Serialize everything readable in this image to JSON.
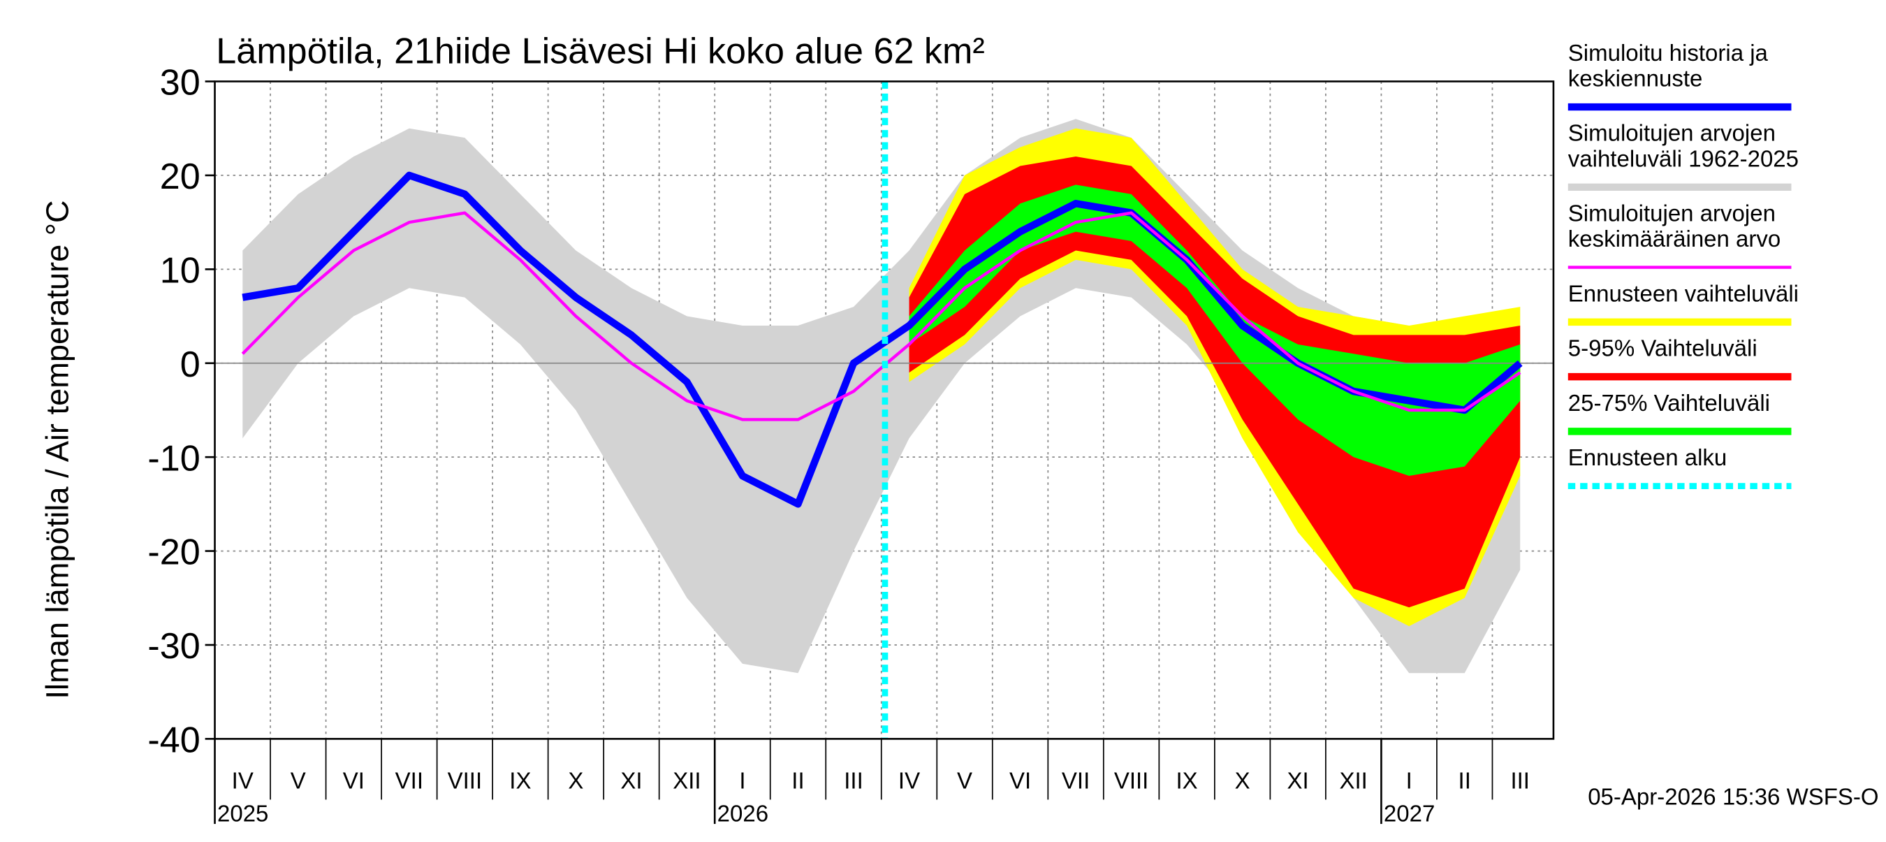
{
  "chart_data": {
    "type": "line",
    "title": "Lämpötila, 21hiide Lisävesi Hi koko alue 62 km²",
    "ylabel": "Ilman lämpötila / Air temperature    °C",
    "footer": "05-Apr-2026 15:36 WSFS-O",
    "x": [
      "2025-04",
      "2025-05",
      "2025-06",
      "2025-07",
      "2025-08",
      "2025-09",
      "2025-10",
      "2025-11",
      "2025-12",
      "2026-01",
      "2026-02",
      "2026-03",
      "2026-04",
      "2026-05",
      "2026-06",
      "2026-07",
      "2026-08",
      "2026-09",
      "2026-10",
      "2026-11",
      "2026-12",
      "2027-01",
      "2027-02",
      "2027-03"
    ],
    "x_tick_labels": [
      "IV",
      "V",
      "VI",
      "VII",
      "VIII",
      "IX",
      "X",
      "XI",
      "XII",
      "I",
      "II",
      "III",
      "IV",
      "V",
      "VI",
      "VII",
      "VIII",
      "IX",
      "X",
      "XI",
      "XII",
      "I",
      "II",
      "III"
    ],
    "year_labels": [
      "2025",
      "2026",
      "2027"
    ],
    "ylim": [
      -40,
      30
    ],
    "yticks": [
      -40,
      -30,
      -20,
      -10,
      0,
      10,
      20,
      30
    ],
    "grid": true,
    "bands": [
      {
        "name": "Simuloitujen arvojen\nvaihteluväli 1962-2025",
        "color": "#d3d3d3",
        "lower": [
          -8,
          0,
          5,
          8,
          7,
          2,
          -5,
          -15,
          -25,
          -32,
          -33,
          -20,
          -8,
          0,
          5,
          8,
          7,
          2,
          -5,
          -15,
          -25,
          -33,
          -33,
          -22
        ],
        "upper": [
          12,
          18,
          22,
          25,
          24,
          18,
          12,
          8,
          5,
          4,
          4,
          6,
          12,
          20,
          24,
          26,
          24,
          18,
          12,
          8,
          5,
          4,
          4,
          6
        ]
      },
      {
        "name": "Ennusteen vaihteluväli",
        "color": "#ffff00",
        "lower": [
          null,
          null,
          null,
          null,
          null,
          null,
          null,
          null,
          null,
          null,
          null,
          null,
          -2,
          2,
          8,
          11,
          10,
          4,
          -8,
          -18,
          -25,
          -28,
          -25,
          -12
        ],
        "upper": [
          null,
          null,
          null,
          null,
          null,
          null,
          null,
          null,
          null,
          null,
          null,
          null,
          8,
          20,
          23,
          25,
          24,
          17,
          10,
          6,
          5,
          4,
          5,
          6
        ]
      },
      {
        "name": "5-95% Vaihteluväli",
        "color": "#ff0000",
        "lower": [
          null,
          null,
          null,
          null,
          null,
          null,
          null,
          null,
          null,
          null,
          null,
          null,
          -1,
          3,
          9,
          12,
          11,
          5,
          -6,
          -15,
          -24,
          -26,
          -24,
          -10
        ],
        "upper": [
          null,
          null,
          null,
          null,
          null,
          null,
          null,
          null,
          null,
          null,
          null,
          null,
          7,
          18,
          21,
          22,
          21,
          15,
          9,
          5,
          3,
          3,
          3,
          4
        ]
      },
      {
        "name": "25-75% Vaihteluväli",
        "color": "#00ff00",
        "lower": [
          null,
          null,
          null,
          null,
          null,
          null,
          null,
          null,
          null,
          null,
          null,
          null,
          2,
          6,
          12,
          14,
          13,
          8,
          0,
          -6,
          -10,
          -12,
          -11,
          -4
        ],
        "upper": [
          null,
          null,
          null,
          null,
          null,
          null,
          null,
          null,
          null,
          null,
          null,
          null,
          5,
          12,
          17,
          19,
          18,
          12,
          5,
          2,
          1,
          0,
          0,
          2
        ]
      }
    ],
    "series": [
      {
        "name": "Simuloitu historia ja\nkeskiennuste",
        "color": "#0000ff",
        "values": [
          7,
          8,
          14,
          20,
          18,
          12,
          7,
          3,
          -2,
          -12,
          -15,
          0,
          4,
          10,
          14,
          17,
          16,
          11,
          4,
          0,
          -3,
          -4,
          -5,
          0
        ]
      },
      {
        "name": "Simuloitujen arvojen\nkeskimääräinen arvo",
        "color": "#ff00ff",
        "values": [
          1,
          7,
          12,
          15,
          16,
          11,
          5,
          0,
          -4,
          -6,
          -6,
          -3,
          2,
          8,
          12,
          15,
          16,
          11,
          5,
          0,
          -3,
          -5,
          -5,
          -1
        ]
      }
    ],
    "forecast_start": {
      "name": "Ennusteen alku",
      "x": "2026-04",
      "color": "#00ffff"
    }
  }
}
